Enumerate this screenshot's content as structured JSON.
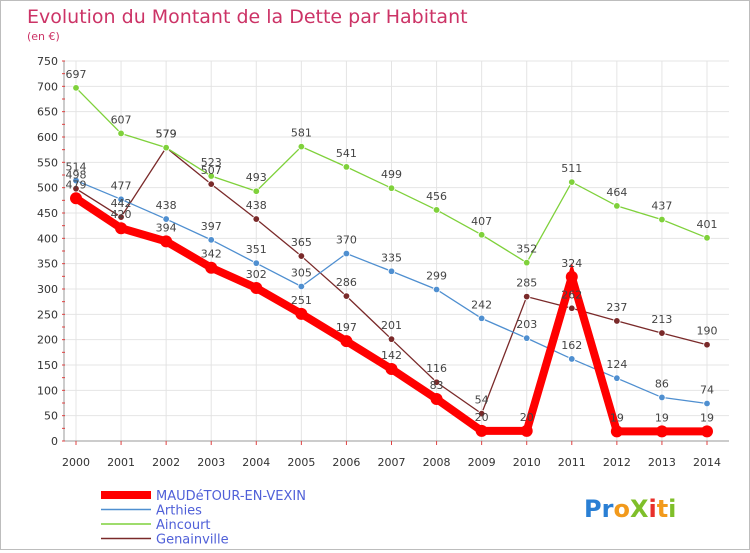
{
  "chart_data": {
    "type": "line",
    "title": "Evolution du Montant de la Dette par Habitant",
    "subtitle": "(en €)",
    "x": [
      "2000",
      "2001",
      "2002",
      "2003",
      "2004",
      "2005",
      "2006",
      "2007",
      "2008",
      "2009",
      "2010",
      "2011",
      "2012",
      "2013",
      "2014"
    ],
    "ylim": [
      0,
      750
    ],
    "yticks": [
      0,
      50,
      100,
      150,
      200,
      250,
      300,
      350,
      400,
      450,
      500,
      550,
      600,
      650,
      700,
      750
    ],
    "grid": true,
    "legend_position": "bottom-left",
    "series": [
      {
        "name": "MAUDéTOUR-EN-VEXIN",
        "color": "#ff0000",
        "values": [
          479,
          420,
          394,
          342,
          302,
          251,
          197,
          142,
          83,
          20,
          20,
          324,
          19,
          19,
          19
        ]
      },
      {
        "name": "Arthies",
        "color": "#4f8fd0",
        "values": [
          514,
          477,
          438,
          397,
          351,
          305,
          370,
          335,
          299,
          242,
          203,
          162,
          124,
          86,
          74
        ]
      },
      {
        "name": "Aincourt",
        "color": "#7fd13b",
        "values": [
          697,
          607,
          579,
          523,
          493,
          581,
          541,
          499,
          456,
          407,
          352,
          511,
          464,
          437,
          401
        ]
      },
      {
        "name": "Genainville",
        "color": "#7a2a2a",
        "values": [
          498,
          442,
          579,
          507,
          438,
          365,
          286,
          201,
          116,
          54,
          285,
          262,
          237,
          213,
          190
        ]
      }
    ]
  },
  "logo": {
    "text": "ProXiti"
  }
}
